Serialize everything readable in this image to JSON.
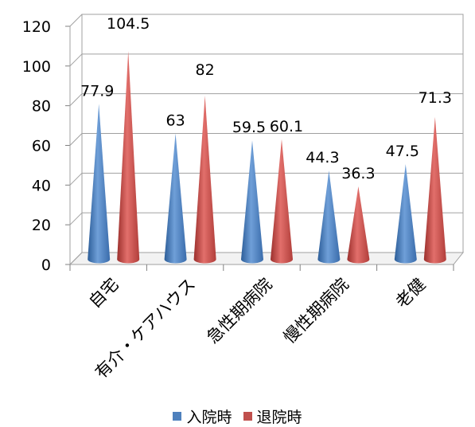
{
  "chart_data": {
    "type": "bar",
    "bar_shape": "cone",
    "categories": [
      "自宅",
      "有介・ケアハウス",
      "急性期病院",
      "慢性期病院",
      "老健"
    ],
    "series": [
      {
        "name": "入院時",
        "values": [
          77.9,
          63,
          59.5,
          44.3,
          47.5
        ],
        "color": "#4F81BD"
      },
      {
        "name": "退院時",
        "values": [
          104.5,
          82,
          60.1,
          36.3,
          71.3
        ],
        "color": "#C0504D"
      }
    ],
    "ylim": [
      0,
      120
    ],
    "yticks": [
      "0",
      "20",
      "40",
      "60",
      "80",
      "100",
      "120"
    ],
    "data_labels": [
      [
        "77.9",
        "63",
        "59.5",
        "44.3",
        "47.5"
      ],
      [
        "104.5",
        "82",
        "60.1",
        "36.3",
        "71.3"
      ]
    ],
    "grid": true,
    "legend_position": "bottom"
  }
}
